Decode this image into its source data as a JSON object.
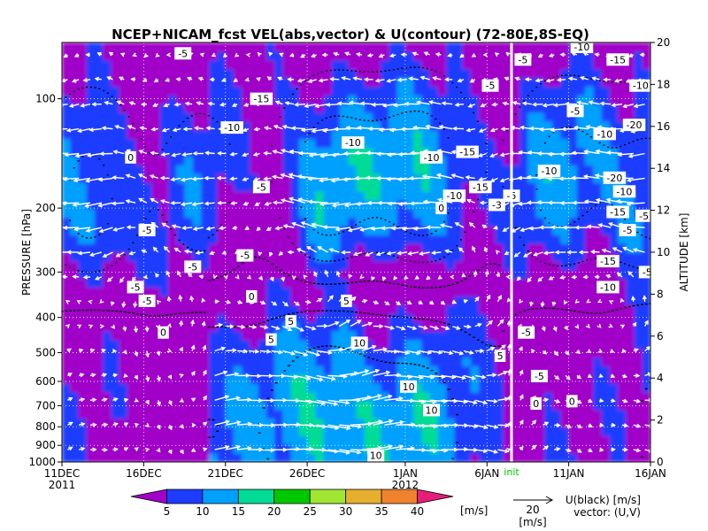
{
  "chart_data": {
    "type": "heatmap",
    "title": "NCEP+NICAM_fcst VEL(abs,vector) & U(contour)   (72-80E,8S-EQ)",
    "ylabel_left": "PRESSURE [hPa]",
    "ylabel_right": "ALTITUDE [km]",
    "x_ticks": [
      "11DEC",
      "16DEC",
      "21DEC",
      "26DEC",
      "1JAN",
      "6JAN",
      "11JAN",
      "16JAN"
    ],
    "x_year_labels": [
      {
        "label": "2011",
        "at": "11DEC"
      },
      {
        "label": "2012",
        "at": "1JAN"
      }
    ],
    "x_range_days": [
      0,
      36
    ],
    "x_tick_days": [
      0,
      5,
      10,
      15,
      21,
      26,
      31,
      36
    ],
    "init_day": 27.5,
    "init_label": "init",
    "pressure_ticks": [
      100,
      200,
      300,
      400,
      500,
      600,
      700,
      800,
      900,
      1000
    ],
    "pressure_range": [
      1000,
      70
    ],
    "altitude_ticks": [
      0,
      2,
      4,
      6,
      8,
      10,
      12,
      14,
      16,
      18,
      20
    ],
    "colorbar": {
      "levels": [
        5,
        10,
        15,
        20,
        25,
        30,
        35,
        40
      ],
      "unit": "[m/s]",
      "colors": [
        "#a000c8",
        "#1e3cff",
        "#00a0ff",
        "#00dc96",
        "#00c800",
        "#a0e632",
        "#e6af2d",
        "#f0822d",
        "#e61e78"
      ]
    },
    "vector_reference": {
      "value": "20",
      "unit": "[m/s]"
    },
    "legend": {
      "contour": "U(black) [m/s]",
      "vector": "vector: (U,V)"
    },
    "contour_labels": [
      {
        "day": 12.2,
        "p": 175,
        "text": "-5"
      },
      {
        "day": 17.8,
        "p": 132,
        "text": "-10"
      },
      {
        "day": 22.6,
        "p": 145,
        "text": "-10"
      },
      {
        "day": 24.8,
        "p": 140,
        "text": "-15"
      },
      {
        "day": 26.2,
        "p": 92,
        "text": "-5"
      },
      {
        "day": 24.0,
        "p": 185,
        "text": "-10"
      },
      {
        "day": 26.6,
        "p": 196,
        "text": "-3"
      },
      {
        "day": 25.6,
        "p": 175,
        "text": "-15"
      },
      {
        "day": 23.2,
        "p": 200,
        "text": "0"
      },
      {
        "day": 27.5,
        "p": 185,
        "text": "-5"
      },
      {
        "day": 29.8,
        "p": 158,
        "text": "-10"
      },
      {
        "day": 33.2,
        "p": 125,
        "text": "-10"
      },
      {
        "day": 33.4,
        "p": 280,
        "text": "-15"
      },
      {
        "day": 31.4,
        "p": 108,
        "text": "-5"
      },
      {
        "day": 28.2,
        "p": 78,
        "text": "-5"
      },
      {
        "day": 7.4,
        "p": 75,
        "text": "-5"
      },
      {
        "day": 4.2,
        "p": 145,
        "text": "0"
      },
      {
        "day": 5.2,
        "p": 230,
        "text": "-5"
      },
      {
        "day": 8.0,
        "p": 290,
        "text": "-5"
      },
      {
        "day": 11.2,
        "p": 270,
        "text": "-5"
      },
      {
        "day": 4.5,
        "p": 330,
        "text": "-5"
      },
      {
        "day": 5.2,
        "p": 360,
        "text": "-5"
      },
      {
        "day": 11.6,
        "p": 350,
        "text": "0"
      },
      {
        "day": 12.2,
        "p": 100,
        "text": "-15"
      },
      {
        "day": 10.4,
        "p": 120,
        "text": "-10"
      },
      {
        "day": 17.4,
        "p": 360,
        "text": "5"
      },
      {
        "day": 14.0,
        "p": 410,
        "text": "5"
      },
      {
        "day": 6.2,
        "p": 440,
        "text": "0"
      },
      {
        "day": 12.8,
        "p": 460,
        "text": "5"
      },
      {
        "day": 18.2,
        "p": 470,
        "text": "10"
      },
      {
        "day": 21.2,
        "p": 620,
        "text": "10"
      },
      {
        "day": 22.6,
        "p": 720,
        "text": "10"
      },
      {
        "day": 26.8,
        "p": 510,
        "text": "5"
      },
      {
        "day": 28.4,
        "p": 440,
        "text": "-5"
      },
      {
        "day": 29.2,
        "p": 580,
        "text": "-5"
      },
      {
        "day": 29.0,
        "p": 690,
        "text": "0"
      },
      {
        "day": 19.2,
        "p": 960,
        "text": "10"
      },
      {
        "day": 31.2,
        "p": 680,
        "text": "0"
      },
      {
        "day": 35.8,
        "p": 300,
        "text": "-5"
      },
      {
        "day": 33.4,
        "p": 330,
        "text": "-10"
      },
      {
        "day": 35.0,
        "p": 118,
        "text": "-20"
      },
      {
        "day": 33.8,
        "p": 165,
        "text": "-20"
      },
      {
        "day": 34.4,
        "p": 180,
        "text": "-10"
      },
      {
        "day": 34.6,
        "p": 230,
        "text": "-5"
      },
      {
        "day": 35.4,
        "p": 92,
        "text": "-10"
      },
      {
        "day": 34.0,
        "p": 78,
        "text": "-15"
      },
      {
        "day": 31.8,
        "p": 72,
        "text": "-10"
      },
      {
        "day": 34.0,
        "p": 205,
        "text": "-15"
      },
      {
        "day": 35.6,
        "p": 210,
        "text": "-5"
      }
    ]
  }
}
